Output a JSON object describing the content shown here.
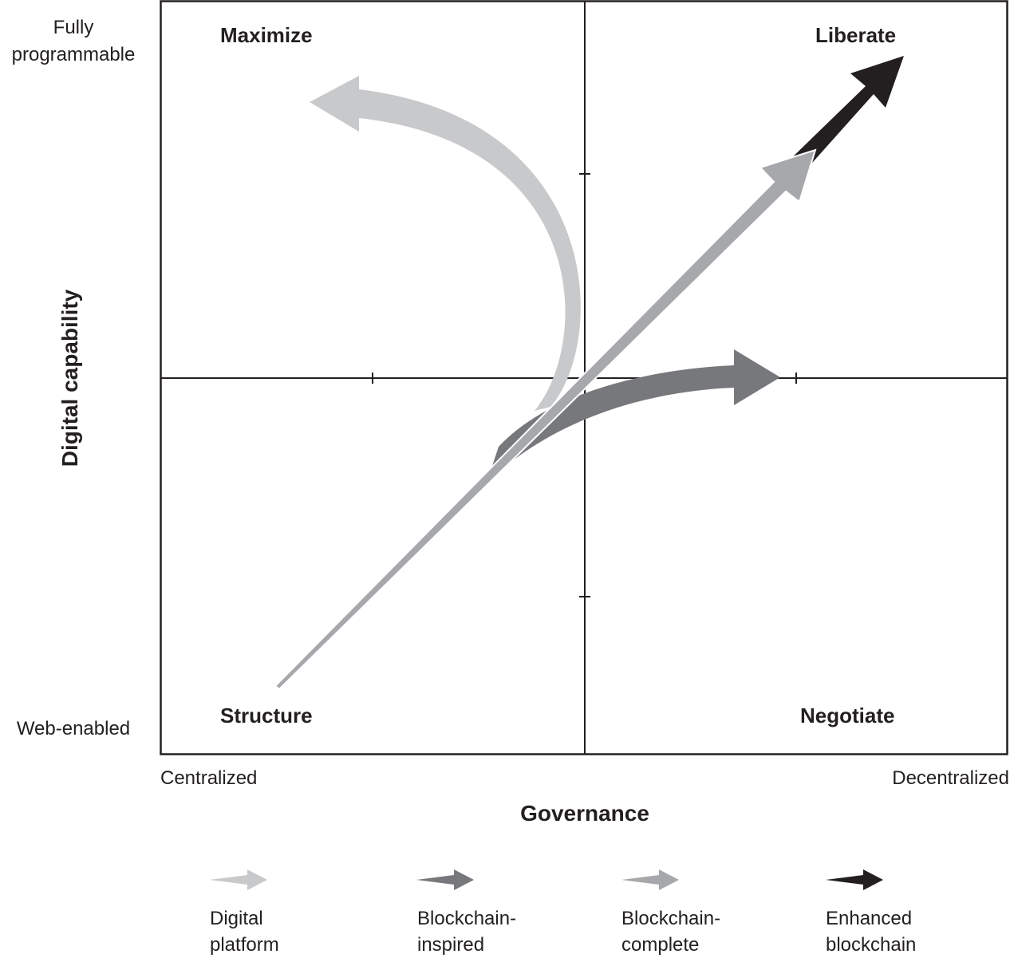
{
  "axes": {
    "y_title": "Digital capability",
    "y_top": "Fully\nprogrammable",
    "y_bottom": "Web-enabled",
    "x_title": "Governance",
    "x_left": "Centralized",
    "x_right": "Decentralized"
  },
  "quadrants": {
    "top_left": "Maximize",
    "top_right": "Liberate",
    "bottom_left": "Structure",
    "bottom_right": "Negotiate"
  },
  "legend": [
    {
      "label_line1": "Digital",
      "label_line2": "platform",
      "color": "#c8c9cb"
    },
    {
      "label_line1": "Blockchain-",
      "label_line2": "inspired",
      "color": "#77787b"
    },
    {
      "label_line1": "Blockchain-",
      "label_line2": "complete",
      "color": "#a6a8ab"
    },
    {
      "label_line1": "Enhanced",
      "label_line2": "blockchain",
      "color": "#231f20"
    }
  ],
  "colors": {
    "digital_platform": "#c8c9cb",
    "blockchain_inspired": "#77787b",
    "blockchain_complete": "#a6a8ab",
    "enhanced_blockchain": "#231f20",
    "lines": "#231f20"
  }
}
